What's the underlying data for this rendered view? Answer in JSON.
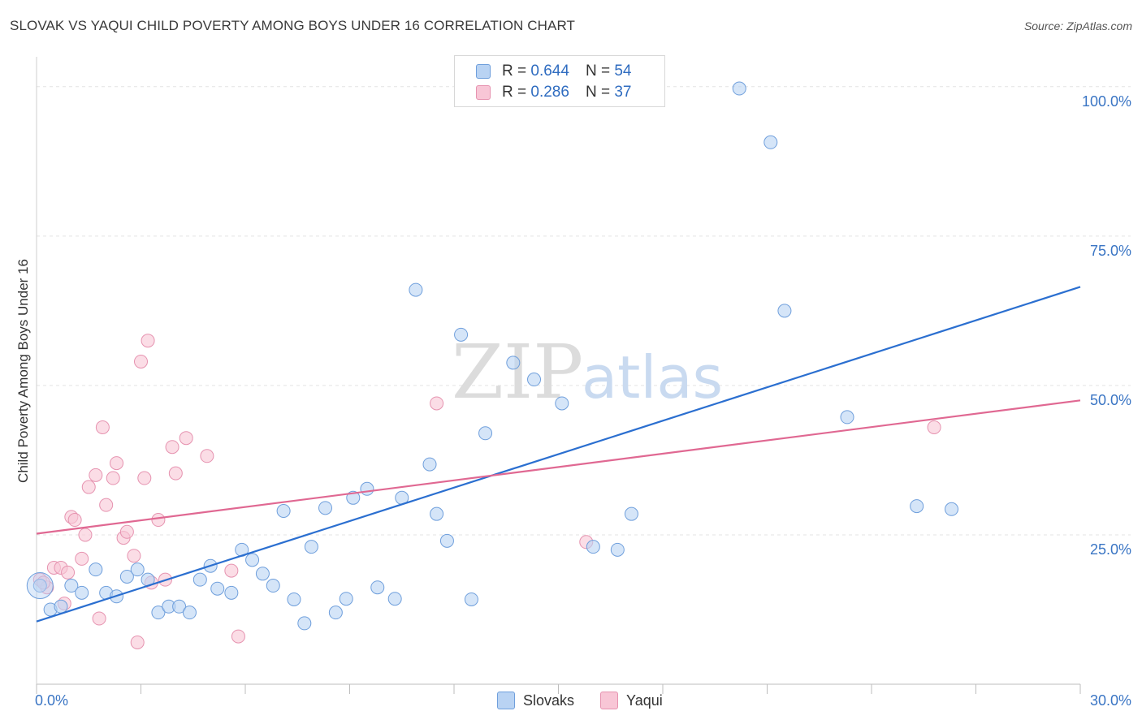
{
  "title": "SLOVAK VS YAQUI CHILD POVERTY AMONG BOYS UNDER 16 CORRELATION CHART",
  "source": "Source: ZipAtlas.com",
  "watermark": {
    "zip": "ZIP",
    "atlas": "atlas"
  },
  "colors": {
    "slovaks_fill": "#b9d3f3",
    "slovaks_stroke": "#6f9fdc",
    "slovaks_line": "#2b6fd0",
    "yaqui_fill": "#f8c6d6",
    "yaqui_stroke": "#e693b0",
    "yaqui_line": "#e06892",
    "axis_label": "#3a75c4",
    "grid": "#e3e3e3"
  },
  "legend": {
    "rows": [
      {
        "r_label": "R =",
        "r_value": "0.644",
        "n_label": "N =",
        "n_value": "54"
      },
      {
        "r_label": "R =",
        "r_value": "0.286",
        "n_label": "N =",
        "n_value": "37"
      }
    ]
  },
  "chart_data": {
    "type": "scatter",
    "xlabel": "",
    "ylabel": "Child Poverty Among Boys Under 16",
    "xlim": [
      0,
      30
    ],
    "ylim": [
      0,
      105
    ],
    "x_tick_labels": [
      {
        "value": 0,
        "label": "0.0%"
      },
      {
        "value": 30,
        "label": "30.0%"
      }
    ],
    "y_tick_labels": [
      {
        "value": 25,
        "label": "25.0%"
      },
      {
        "value": 50,
        "label": "50.0%"
      },
      {
        "value": 75,
        "label": "75.0%"
      },
      {
        "value": 100,
        "label": "100.0%"
      }
    ],
    "series": [
      {
        "name": "Slovaks",
        "trend": [
          [
            0,
            10.5
          ],
          [
            30,
            66.5
          ]
        ],
        "points": [
          [
            0.1,
            16.5
          ],
          [
            0.4,
            12.5
          ],
          [
            0.7,
            13.0
          ],
          [
            1.0,
            16.5
          ],
          [
            1.3,
            15.3
          ],
          [
            1.7,
            19.2
          ],
          [
            2.0,
            15.3
          ],
          [
            2.3,
            14.7
          ],
          [
            2.6,
            18.0
          ],
          [
            2.9,
            19.2
          ],
          [
            3.2,
            17.5
          ],
          [
            3.5,
            12.0
          ],
          [
            3.8,
            13.0
          ],
          [
            4.1,
            13.0
          ],
          [
            4.4,
            12.0
          ],
          [
            4.7,
            17.5
          ],
          [
            5.0,
            19.8
          ],
          [
            5.2,
            16.0
          ],
          [
            5.6,
            15.3
          ],
          [
            5.9,
            22.5
          ],
          [
            6.2,
            20.8
          ],
          [
            6.5,
            18.5
          ],
          [
            6.8,
            16.5
          ],
          [
            7.1,
            29.0
          ],
          [
            7.4,
            14.2
          ],
          [
            7.7,
            10.2
          ],
          [
            7.9,
            23.0
          ],
          [
            8.3,
            29.5
          ],
          [
            8.6,
            12.0
          ],
          [
            8.9,
            14.3
          ],
          [
            9.1,
            31.2
          ],
          [
            9.5,
            32.7
          ],
          [
            9.8,
            16.2
          ],
          [
            10.3,
            14.3
          ],
          [
            10.5,
            31.2
          ],
          [
            10.9,
            66.0
          ],
          [
            11.3,
            36.8
          ],
          [
            11.5,
            28.5
          ],
          [
            11.8,
            24.0
          ],
          [
            12.2,
            58.5
          ],
          [
            12.5,
            14.2
          ],
          [
            12.9,
            42.0
          ],
          [
            13.7,
            53.8
          ],
          [
            14.3,
            51.0
          ],
          [
            15.1,
            47.0
          ],
          [
            16.0,
            23.0
          ],
          [
            16.7,
            22.5
          ],
          [
            17.1,
            28.5
          ],
          [
            20.2,
            99.7
          ],
          [
            21.1,
            90.7
          ],
          [
            21.5,
            62.5
          ],
          [
            23.3,
            44.7
          ],
          [
            25.3,
            29.8
          ],
          [
            26.3,
            29.3
          ]
        ]
      },
      {
        "name": "Yaqui",
        "trend": [
          [
            0,
            25.2
          ],
          [
            30,
            47.5
          ]
        ],
        "points": [
          [
            0.1,
            17.5
          ],
          [
            0.3,
            16.2
          ],
          [
            0.5,
            19.5
          ],
          [
            0.7,
            19.5
          ],
          [
            0.8,
            13.5
          ],
          [
            0.9,
            18.7
          ],
          [
            1.0,
            28.0
          ],
          [
            1.1,
            27.5
          ],
          [
            1.3,
            21.0
          ],
          [
            1.4,
            25.0
          ],
          [
            1.5,
            33.0
          ],
          [
            1.7,
            35.0
          ],
          [
            1.8,
            11.0
          ],
          [
            1.9,
            43.0
          ],
          [
            2.0,
            30.0
          ],
          [
            2.2,
            34.5
          ],
          [
            2.3,
            37.0
          ],
          [
            2.5,
            24.5
          ],
          [
            2.6,
            25.5
          ],
          [
            2.8,
            21.5
          ],
          [
            2.9,
            7.0
          ],
          [
            3.0,
            54.0
          ],
          [
            3.1,
            34.5
          ],
          [
            3.2,
            57.5
          ],
          [
            3.3,
            17.0
          ],
          [
            3.5,
            27.5
          ],
          [
            3.7,
            17.5
          ],
          [
            3.9,
            39.7
          ],
          [
            4.0,
            35.3
          ],
          [
            4.3,
            41.2
          ],
          [
            4.9,
            38.2
          ],
          [
            5.6,
            19.0
          ],
          [
            5.8,
            8.0
          ],
          [
            11.5,
            47.0
          ],
          [
            15.8,
            23.8
          ],
          [
            25.8,
            43.0
          ],
          [
            0.2,
            17.0
          ]
        ]
      }
    ]
  },
  "bottom_legend": {
    "slovaks": "Slovaks",
    "yaqui": "Yaqui"
  }
}
